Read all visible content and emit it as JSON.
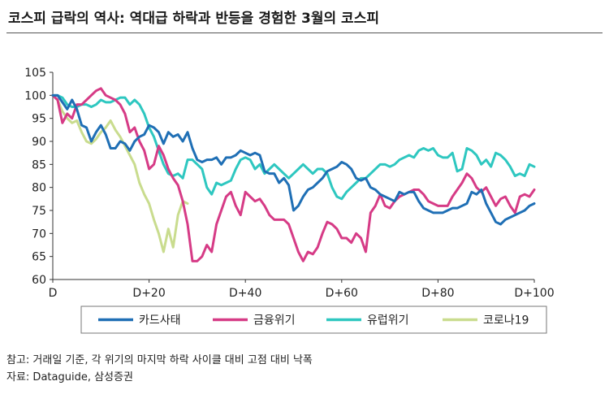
{
  "title": "코스피 급락의 역사: 역대급 하락과 반등을 경험한 3월의 코스피",
  "notes": {
    "note": "참고: 거래일 기준, 각 위기의 마지막 하락 사이클 대비 고점 대비 낙폭",
    "source": "자료: Dataguide, 삼성증권"
  },
  "chart_data": {
    "type": "line",
    "ylim": [
      60,
      105
    ],
    "yticks": [
      60,
      65,
      70,
      75,
      80,
      85,
      90,
      95,
      100,
      105
    ],
    "xlim": [
      0,
      100
    ],
    "xticks": [
      {
        "x": 0,
        "label": "D"
      },
      {
        "x": 20,
        "label": "D+20"
      },
      {
        "x": 40,
        "label": "D+40"
      },
      {
        "x": 60,
        "label": "D+60"
      },
      {
        "x": 80,
        "label": "D+80"
      },
      {
        "x": 100,
        "label": "D+100"
      }
    ],
    "grid": false,
    "legend_position": "bottom",
    "series": [
      {
        "name": "카드사태",
        "color": "#1f6fb5",
        "values": [
          100,
          100,
          98.5,
          97,
          99,
          97,
          93.5,
          93,
          90,
          92,
          93.5,
          91.5,
          88.5,
          88.5,
          90,
          89.5,
          88,
          90,
          91,
          91.5,
          93.5,
          93,
          92,
          89.5,
          92,
          91,
          91.5,
          90,
          92,
          88.5,
          86,
          85.5,
          86,
          86,
          86.5,
          85,
          86.5,
          86.5,
          87,
          88,
          87.5,
          87,
          87.5,
          87,
          83.5,
          83,
          83,
          81,
          82,
          80.5,
          75,
          76,
          78,
          79.5,
          80,
          81,
          82,
          83.5,
          84,
          84.5,
          85.5,
          85,
          84,
          82,
          81.5,
          82,
          80,
          79.5,
          78.5,
          78,
          77.5,
          77,
          79,
          78.5,
          79,
          79,
          77,
          75.5,
          75,
          74.5,
          74.5,
          74.5,
          75,
          75.5,
          75.5,
          76,
          76.5,
          79,
          78.5,
          79.5,
          76.5,
          74.5,
          72.5,
          72,
          73,
          73.5,
          74,
          74.5,
          75,
          76,
          76.5
        ]
      },
      {
        "name": "금융위기",
        "color": "#d63b86",
        "values": [
          100,
          99,
          94,
          96,
          95,
          98,
          98,
          99,
          100,
          101,
          101.5,
          100,
          99.5,
          99,
          98,
          96,
          92,
          93,
          90,
          88,
          84,
          85,
          89,
          87,
          84,
          82,
          80.5,
          77,
          72,
          64,
          64,
          65,
          67.5,
          66,
          72,
          75,
          78,
          79,
          76,
          74,
          79,
          78,
          77,
          77.5,
          76,
          74,
          73,
          73,
          73,
          72,
          69,
          66,
          64,
          66,
          65.5,
          67,
          70,
          72.5,
          72,
          71,
          69,
          69,
          68,
          70,
          69,
          66,
          74.5,
          76,
          78.5,
          76,
          75.5,
          77,
          78,
          78.5,
          79,
          79.5,
          79.5,
          78.5,
          77,
          76.5,
          76,
          76,
          76,
          78,
          79.5,
          81,
          83,
          82,
          80,
          79,
          80,
          78,
          76,
          77.5,
          78,
          76,
          74.5,
          78,
          78.5,
          78,
          79.5
        ]
      },
      {
        "name": "유럽위기",
        "color": "#2ec7c0",
        "values": [
          100,
          100,
          99.5,
          98,
          97.5,
          97.5,
          98,
          98,
          97.5,
          98,
          99,
          98.5,
          98.5,
          99,
          99.5,
          99.5,
          98,
          99,
          98,
          96,
          93,
          91,
          88,
          85,
          83,
          82.5,
          83,
          82,
          86,
          86,
          85,
          84,
          80,
          78.5,
          81,
          80.5,
          81,
          81.5,
          84,
          86,
          86.5,
          86,
          84,
          85,
          83,
          84,
          85,
          84,
          83,
          82,
          83,
          84,
          85,
          84,
          83,
          84,
          84,
          83,
          80,
          78,
          77.5,
          79,
          80,
          81,
          82,
          82,
          83,
          84,
          85,
          85,
          84.5,
          85,
          86,
          86.5,
          87,
          86.5,
          88,
          88.5,
          88,
          88.5,
          87,
          86.5,
          86.5,
          87.5,
          83.5,
          84,
          88.5,
          88,
          87,
          85,
          86,
          84.5,
          87.5,
          87,
          86,
          84.5,
          82.5,
          83,
          82.5,
          85,
          84.5
        ]
      },
      {
        "name": "코로나19",
        "color": "#c9dc8e",
        "values": [
          100,
          99,
          96.5,
          95,
          94,
          94.5,
          92,
          90,
          89.5,
          90.5,
          92,
          93,
          94.5,
          92.5,
          91,
          89,
          87,
          85,
          81,
          78.5,
          76.5,
          73,
          70,
          66,
          71,
          67,
          74,
          77,
          76.5
        ]
      }
    ]
  }
}
